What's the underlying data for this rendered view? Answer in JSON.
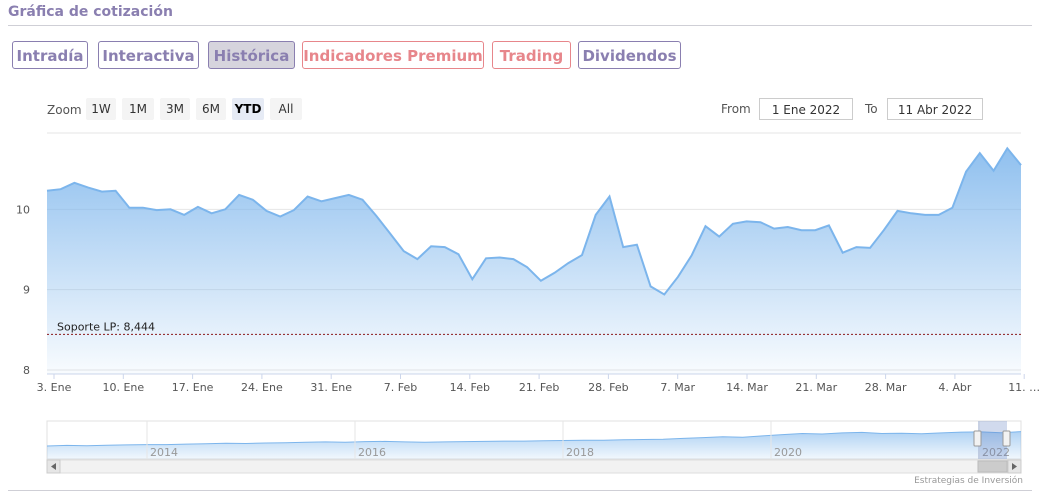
{
  "header": {
    "title": "Gráfica de cotización"
  },
  "tabs": [
    {
      "label": "Intradía",
      "active": false,
      "style": "normal"
    },
    {
      "label": "Interactiva",
      "active": false,
      "style": "normal"
    },
    {
      "label": "Histórica",
      "active": true,
      "style": "normal"
    },
    {
      "label": "Indicadores Premium",
      "active": false,
      "style": "red"
    },
    {
      "label": "Trading",
      "active": false,
      "style": "red"
    },
    {
      "label": "Dividendos",
      "active": false,
      "style": "normal"
    }
  ],
  "zoom": {
    "label": "Zoom",
    "buttons": [
      "1W",
      "1M",
      "3M",
      "6M",
      "YTD",
      "All"
    ],
    "selected": "YTD"
  },
  "range": {
    "from_label": "From",
    "from_value": "1 Ene 2022",
    "to_label": "To",
    "to_value": "11 Abr 2022"
  },
  "credit": "Estrategias de Inversión",
  "colors": {
    "accent": "#8a7fb0",
    "line": "#7cb5ec",
    "support": "#8b1a1a"
  },
  "chart_data": {
    "type": "area",
    "y_ticks": [
      8,
      9,
      10
    ],
    "ylim": [
      7.95,
      10.95
    ],
    "x_ticks": [
      "3. Ene",
      "10. Ene",
      "17. Ene",
      "24. Ene",
      "31. Ene",
      "7. Feb",
      "14. Feb",
      "21. Feb",
      "28. Feb",
      "7. Mar",
      "14. Mar",
      "21. Mar",
      "28. Mar",
      "4. Abr",
      "11. …"
    ],
    "support": {
      "label": "Soporte LP: 8,444",
      "value": 8.444
    },
    "series": [
      {
        "values": [
          10.23,
          10.25,
          10.33,
          10.27,
          10.22,
          10.23,
          10.02,
          10.02,
          9.99,
          10.0,
          9.93,
          10.03,
          9.95,
          10.0,
          10.18,
          10.12,
          9.98,
          9.91,
          9.99,
          10.16,
          10.1,
          10.14,
          10.18,
          10.12,
          9.92,
          9.7,
          9.48,
          9.38,
          9.54,
          9.53,
          9.44,
          9.13,
          9.39,
          9.4,
          9.38,
          9.28,
          9.11,
          9.21,
          9.33,
          9.43,
          9.93,
          10.16,
          9.53,
          9.56,
          9.04,
          8.94,
          9.16,
          9.43,
          9.79,
          9.66,
          9.82,
          9.85,
          9.84,
          9.76,
          9.78,
          9.74,
          9.74,
          9.8,
          9.46,
          9.53,
          9.52,
          9.74,
          9.98,
          9.95,
          9.93,
          9.93,
          10.02,
          10.47,
          10.7,
          10.48,
          10.76,
          10.55
        ]
      }
    ],
    "navigator": {
      "x_ticks": [
        "2014",
        "2016",
        "2018",
        "2020",
        "2022"
      ],
      "values": [
        4.8,
        5.0,
        4.9,
        5.1,
        5.2,
        5.3,
        5.3,
        5.5,
        5.6,
        5.8,
        5.7,
        5.9,
        6.0,
        6.2,
        6.3,
        6.2,
        6.4,
        6.5,
        6.3,
        6.2,
        6.3,
        6.4,
        6.5,
        6.6,
        6.6,
        6.7,
        6.8,
        6.9,
        6.9,
        7.1,
        7.2,
        7.3,
        7.6,
        7.9,
        8.2,
        8.0,
        8.5,
        9.0,
        9.4,
        9.2,
        9.6,
        9.8,
        9.4,
        9.5,
        9.3,
        9.6,
        9.9,
        10.0,
        9.7,
        10.1
      ]
    }
  }
}
